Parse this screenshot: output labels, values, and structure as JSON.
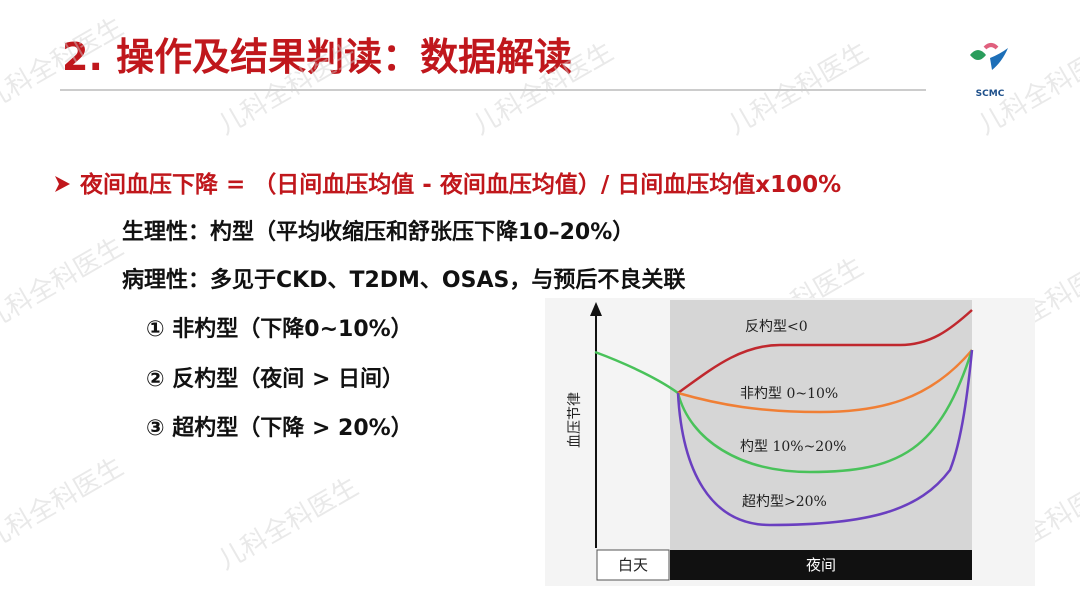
{
  "header": {
    "title": "2. 操作及结果判读：数据解读",
    "logo": "SCMC"
  },
  "watermark": "儿科全科医生",
  "body": {
    "formula": "夜间血压下降 = （日间血压均值 - 夜间血压均值）/ 日间血压均值x100%",
    "lines": [
      "生理性：杓型（平均收缩压和舒张压下降10–20%）",
      "病理性：多见于CKD、T2DM、OSAS，与预后不良关联"
    ],
    "items": [
      "① 非杓型（下降0~10%）",
      "② 反杓型（夜间 > 日间）",
      "③ 超杓型（下降 > 20%）"
    ]
  },
  "figure": {
    "y_label": "血压节律",
    "curves": [
      "反杓型<0",
      "非杓型 0~10%",
      "杓型 10%~20%",
      "超杓型>20%"
    ],
    "day": "白天",
    "night": "夜间"
  }
}
